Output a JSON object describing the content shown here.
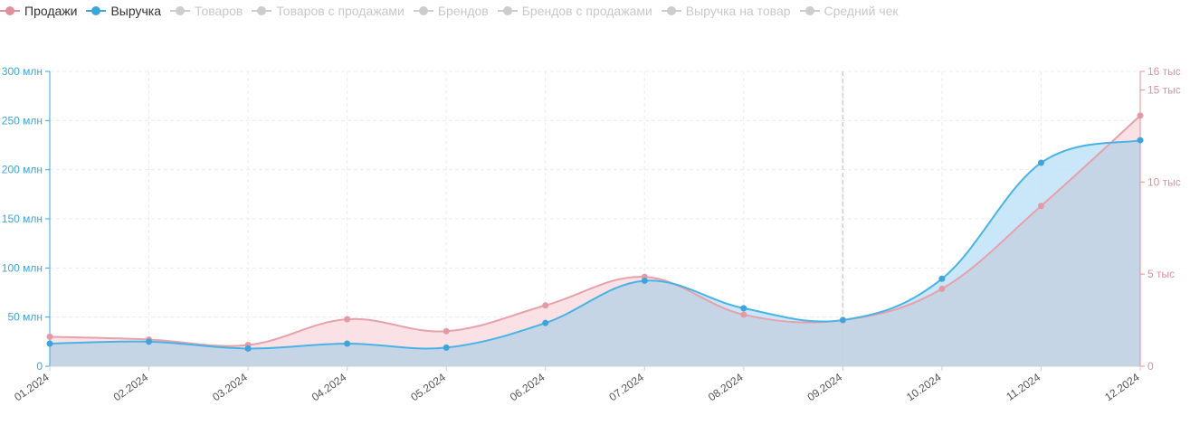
{
  "legend": [
    {
      "label": "Продажи",
      "color": "#e0919c",
      "active": true
    },
    {
      "label": "Выручка",
      "color": "#3ea4dc",
      "active": true
    },
    {
      "label": "Товаров",
      "color": "#cccccc",
      "active": false
    },
    {
      "label": "Товаров с продажами",
      "color": "#cccccc",
      "active": false
    },
    {
      "label": "Брендов",
      "color": "#cccccc",
      "active": false
    },
    {
      "label": "Брендов с продажами",
      "color": "#cccccc",
      "active": false
    },
    {
      "label": "Выручка на товар",
      "color": "#cccccc",
      "active": false
    },
    {
      "label": "Средний чек",
      "color": "#cccccc",
      "active": false
    }
  ],
  "chart_data": {
    "type": "area",
    "categories": [
      "01.2024",
      "02.2024",
      "03.2024",
      "04.2024",
      "05.2024",
      "06.2024",
      "07.2024",
      "08.2024",
      "09.2024",
      "10.2024",
      "11.2024",
      "12.2024"
    ],
    "series": [
      {
        "name": "Выручка",
        "axis": "left",
        "unit": "млн",
        "values": [
          23,
          25,
          18,
          23,
          19,
          44,
          87,
          59,
          47,
          89,
          207,
          230
        ]
      },
      {
        "name": "Продажи",
        "axis": "right",
        "unit": "тыс",
        "values": [
          1.6,
          1.45,
          1.15,
          2.55,
          1.9,
          3.3,
          4.85,
          2.8,
          2.5,
          4.2,
          8.7,
          13.6
        ]
      }
    ],
    "left_axis": {
      "min": 0,
      "max": 300,
      "ticks": [
        0,
        50,
        100,
        150,
        200,
        250,
        300
      ],
      "labels": [
        "0",
        "50 млн",
        "100 млн",
        "150 млн",
        "200 млн",
        "250 млн",
        "300 млн"
      ],
      "color": "#3ea4dc"
    },
    "right_axis": {
      "min": 0,
      "max": 16,
      "ticks": [
        0,
        5,
        10,
        15,
        16
      ],
      "labels": [
        "0",
        "5 тыс",
        "10 тыс",
        "15 тыс",
        "16 тыс"
      ],
      "color": "#e0919c"
    },
    "crosshair_category": "09.2024",
    "grid": true,
    "colors": {
      "sales_line": "#e8a0aa",
      "sales_fill": "#f8dce1",
      "revenue_line": "#4ab3e6",
      "revenue_fill": "#bfe3f7",
      "overlap_fill": "#c5d5e6"
    }
  }
}
